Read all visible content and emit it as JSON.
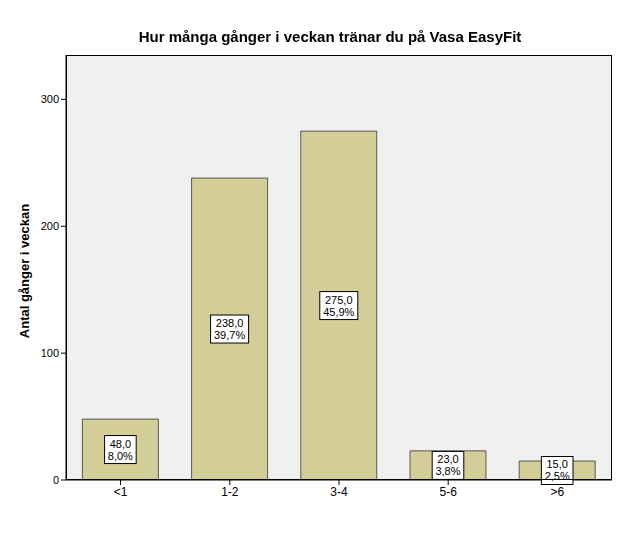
{
  "chart_data": {
    "type": "bar",
    "title": "Hur många gånger i veckan tränar du på Vasa EasyFit",
    "y_label": "Antal gånger i veckan",
    "categories": [
      "<1",
      "1-2",
      "3-4",
      "5-6",
      ">6"
    ],
    "values": [
      48,
      238,
      275,
      23,
      15
    ],
    "value_labels": [
      "48,0\n8,0%",
      "238,0\n39,7%",
      "275,0\n45,9%",
      "23,0\n3,8%",
      "15,0\n2,5%"
    ],
    "data_labels": true,
    "color": "#d3ce97",
    "ylim": [
      0,
      335
    ],
    "yticks": [
      0,
      100,
      200,
      300
    ],
    "grid": false
  }
}
